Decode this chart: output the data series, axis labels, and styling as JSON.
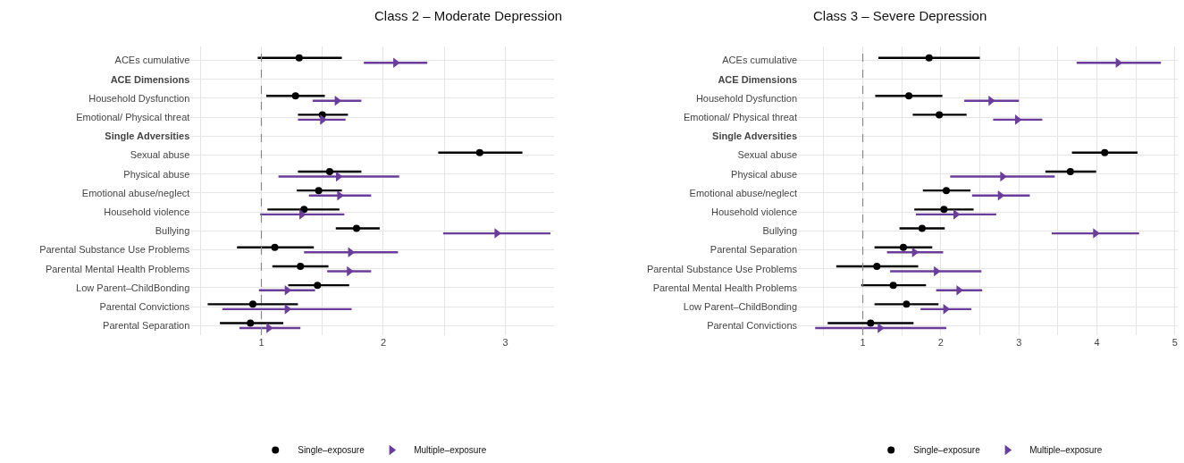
{
  "chart_data": [
    {
      "type": "scatter",
      "orientation": "horizontal",
      "title": "Class 2 – Moderate Depression",
      "categories": [
        "ACEs cumulative",
        "ACE Dimensions",
        "Household Dysfunction",
        "Emotional/ Physical threat",
        "Single Adversities",
        "Sexual abuse",
        "Physical abuse",
        "Emotional abuse/neglect",
        "Household violence",
        "Bullying",
        "Parental Substance Use Problems",
        "Parental Mental Health Problems",
        "Low Parent–ChildBonding",
        "Parental Convictions",
        "Parental Separation"
      ],
      "series": [
        {
          "name": "Single–exposure",
          "color": "#000000",
          "marker": "circle",
          "values": [
            1.31,
            null,
            1.28,
            1.5,
            null,
            2.79,
            1.56,
            1.47,
            1.35,
            1.78,
            1.11,
            1.32,
            1.46,
            0.93,
            0.91
          ],
          "errors": [
            [
              0.97,
              1.66
            ],
            null,
            [
              1.04,
              1.52
            ],
            [
              1.3,
              1.71
            ],
            null,
            [
              2.45,
              3.14
            ],
            [
              1.3,
              1.82
            ],
            [
              1.29,
              1.66
            ],
            [
              1.05,
              1.64
            ],
            [
              1.61,
              1.97
            ],
            [
              0.8,
              1.43
            ],
            [
              1.09,
              1.55
            ],
            [
              1.22,
              1.72
            ],
            [
              0.56,
              1.3
            ],
            [
              0.66,
              1.18
            ]
          ]
        },
        {
          "name": "Multiple–exposure",
          "color": "#6a3d9a",
          "marker": "triangle",
          "values": [
            2.1,
            null,
            1.62,
            1.5,
            null,
            null,
            1.63,
            1.64,
            1.33,
            2.93,
            1.73,
            1.72,
            1.21,
            1.21,
            1.06
          ],
          "errors": [
            [
              1.84,
              2.36
            ],
            null,
            [
              1.42,
              1.82
            ],
            [
              1.3,
              1.69
            ],
            null,
            null,
            [
              1.14,
              2.13
            ],
            [
              1.39,
              1.9
            ],
            [
              0.99,
              1.68
            ],
            [
              2.49,
              3.37
            ],
            [
              1.35,
              2.12
            ],
            [
              1.54,
              1.9
            ],
            [
              0.98,
              1.44
            ],
            [
              0.68,
              1.74
            ],
            [
              0.82,
              1.32
            ]
          ]
        }
      ],
      "xlim": [
        0.42,
        3.4
      ],
      "xticks": [
        {
          "value": 0.5,
          "label": null
        },
        1,
        {
          "value": 1.5,
          "label": null
        },
        2,
        {
          "value": 2.5,
          "label": null
        },
        3
      ],
      "ref_lines": [
        {
          "axis": "x",
          "value": 1,
          "color": "#888888",
          "line_style": "dashed"
        }
      ],
      "grid": true,
      "legend": "bottom"
    },
    {
      "type": "scatter",
      "orientation": "horizontal",
      "title": "Class 3 – Severe Depression",
      "categories": [
        "ACEs cumulative",
        "ACE Dimensions",
        "Household Dysfunction",
        "Emotional/ Physical threat",
        "Single Adversities",
        "Sexual abuse",
        "Physical abuse",
        "Emotional abuse/neglect",
        "Household violence",
        "Bullying",
        "Parental Separation",
        "Parental Substance Use Problems",
        "Parental Mental Health Problems",
        "Low Parent–ChildBonding",
        "Parental Convictions"
      ],
      "series": [
        {
          "name": "Single–exposure",
          "color": "#000000",
          "marker": "circle",
          "values": [
            1.85,
            null,
            1.59,
            1.98,
            null,
            4.1,
            3.66,
            2.07,
            2.04,
            1.76,
            1.52,
            1.18,
            1.39,
            1.56,
            1.1
          ],
          "errors": [
            [
              1.2,
              2.5
            ],
            null,
            [
              1.16,
              2.02
            ],
            [
              1.64,
              2.33
            ],
            null,
            [
              3.68,
              4.52
            ],
            [
              3.34,
              3.99
            ],
            [
              1.77,
              2.38
            ],
            [
              1.66,
              2.42
            ],
            [
              1.47,
              2.05
            ],
            [
              1.15,
              1.89
            ],
            [
              0.66,
              1.71
            ],
            [
              0.98,
              1.81
            ],
            [
              1.15,
              1.97
            ],
            [
              0.55,
              1.65
            ]
          ]
        },
        {
          "name": "Multiple–exposure",
          "color": "#6a3d9a",
          "marker": "triangle",
          "values": [
            4.27,
            null,
            2.64,
            2.98,
            null,
            null,
            2.79,
            2.76,
            2.19,
            3.98,
            1.66,
            1.94,
            2.23,
            2.06,
            1.22
          ],
          "errors": [
            [
              3.74,
              4.82
            ],
            null,
            [
              2.3,
              3.0
            ],
            [
              2.67,
              3.3
            ],
            null,
            null,
            [
              2.12,
              3.46
            ],
            [
              2.4,
              3.14
            ],
            [
              1.68,
              2.71
            ],
            [
              3.42,
              4.54
            ],
            [
              1.31,
              2.03
            ],
            [
              1.35,
              2.52
            ],
            [
              1.94,
              2.53
            ],
            [
              1.74,
              2.39
            ],
            [
              0.39,
              2.07
            ]
          ]
        }
      ],
      "xlim": [
        0.17,
        5.04
      ],
      "xticks": [
        {
          "value": 0.5,
          "label": null
        },
        1,
        {
          "value": 1.5,
          "label": null
        },
        2,
        {
          "value": 2.5,
          "label": null
        },
        3,
        {
          "value": 3.5,
          "label": null
        },
        4,
        {
          "value": 4.5,
          "label": null
        },
        5
      ],
      "ref_lines": [
        {
          "axis": "x",
          "value": 1,
          "color": "#888888",
          "line_style": "dashed"
        }
      ],
      "grid": true,
      "legend": "bottom"
    }
  ]
}
